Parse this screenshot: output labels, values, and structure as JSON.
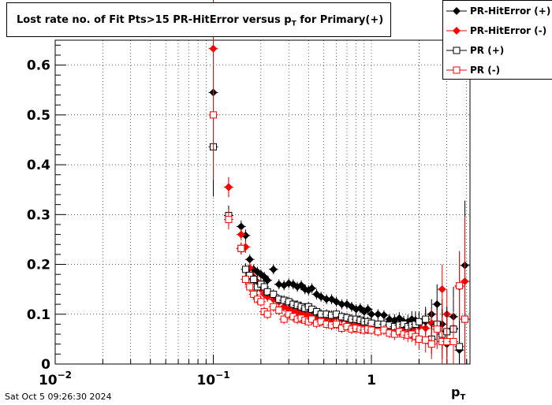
{
  "title": {
    "main": "Lost rate no. of Fit Pts>15 PR-HitError versus p",
    "sub": "T",
    "tail": " for Primary(+)"
  },
  "legend": [
    {
      "label": "PR-HitError (+)",
      "color": "#000000",
      "marker": "filled-diamond"
    },
    {
      "label": "PR-HitError (-)",
      "color": "#ff0000",
      "marker": "filled-diamond"
    },
    {
      "label": "PR (+)",
      "color": "#000000",
      "marker": "open-square"
    },
    {
      "label": "PR (-)",
      "color": "#ff0000",
      "marker": "open-square"
    }
  ],
  "datestamp": "Sat Oct  5 09:26:30 2024",
  "xaxis_title": {
    "main": "p",
    "sub": "T"
  },
  "chart_data": {
    "type": "scatter",
    "xscale": "log",
    "xlim": [
      0.01,
      4.2
    ],
    "ylim": [
      0,
      0.65
    ],
    "grid": true,
    "legend_position": "top-right",
    "ytick_labels": [
      "0",
      "0.1",
      "0.2",
      "0.3",
      "0.4",
      "0.5",
      "0.6"
    ],
    "yticks": [
      0,
      0.1,
      0.2,
      0.3,
      0.4,
      0.5,
      0.6
    ],
    "xtick_labels": [
      {
        "value": 0.01,
        "base": "10",
        "exp": "−2"
      },
      {
        "value": 0.1,
        "base": "10",
        "exp": "−1"
      },
      {
        "value": 1,
        "base": "1",
        "exp": ""
      }
    ],
    "series": [
      {
        "name": "PR-HitError (+)",
        "color": "#000000",
        "marker": "filled-diamond",
        "x": [
          0.1,
          0.125,
          0.15,
          0.16,
          0.17,
          0.18,
          0.19,
          0.2,
          0.21,
          0.22,
          0.24,
          0.26,
          0.28,
          0.3,
          0.32,
          0.34,
          0.36,
          0.38,
          0.4,
          0.42,
          0.45,
          0.48,
          0.52,
          0.56,
          0.6,
          0.65,
          0.7,
          0.75,
          0.8,
          0.85,
          0.9,
          0.95,
          1.0,
          1.1,
          1.2,
          1.3,
          1.4,
          1.5,
          1.6,
          1.7,
          1.8,
          1.9,
          2.0,
          2.2,
          2.4,
          2.6,
          2.8,
          3.0,
          3.3,
          3.6,
          3.9
        ],
        "y": [
          0.545,
          0.355,
          0.276,
          0.258,
          0.21,
          0.19,
          0.185,
          0.18,
          0.175,
          0.168,
          0.19,
          0.16,
          0.158,
          0.162,
          0.16,
          0.155,
          0.158,
          0.15,
          0.148,
          0.152,
          0.14,
          0.135,
          0.13,
          0.13,
          0.125,
          0.12,
          0.12,
          0.115,
          0.11,
          0.112,
          0.105,
          0.11,
          0.1,
          0.1,
          0.098,
          0.09,
          0.088,
          0.092,
          0.085,
          0.085,
          0.09,
          0.088,
          0.082,
          0.085,
          0.1,
          0.12,
          0.08,
          0.04,
          0.095,
          0.028,
          0.198
        ],
        "yerr": [
          0.19,
          0.02,
          0.012,
          0.012,
          0.01,
          0.01,
          0.01,
          0.01,
          0.01,
          0.01,
          0.01,
          0.01,
          0.01,
          0.01,
          0.01,
          0.01,
          0.01,
          0.01,
          0.01,
          0.01,
          0.01,
          0.01,
          0.01,
          0.01,
          0.01,
          0.01,
          0.01,
          0.01,
          0.01,
          0.01,
          0.01,
          0.01,
          0.01,
          0.01,
          0.01,
          0.01,
          0.012,
          0.012,
          0.012,
          0.014,
          0.016,
          0.018,
          0.02,
          0.025,
          0.03,
          0.04,
          0.05,
          0.05,
          0.06,
          0.07,
          0.13
        ]
      },
      {
        "name": "PR-HitError (-)",
        "color": "#ff0000",
        "marker": "filled-diamond",
        "x": [
          0.1,
          0.125,
          0.15,
          0.16,
          0.17,
          0.18,
          0.19,
          0.2,
          0.21,
          0.22,
          0.24,
          0.26,
          0.28,
          0.3,
          0.32,
          0.34,
          0.36,
          0.38,
          0.4,
          0.42,
          0.45,
          0.48,
          0.52,
          0.56,
          0.6,
          0.65,
          0.7,
          0.75,
          0.8,
          0.85,
          0.9,
          0.95,
          1.0,
          1.1,
          1.2,
          1.3,
          1.4,
          1.5,
          1.6,
          1.7,
          1.8,
          1.9,
          2.0,
          2.2,
          2.4,
          2.6,
          2.8,
          3.0,
          3.3,
          3.6,
          3.9
        ],
        "y": [
          0.633,
          0.355,
          0.26,
          0.235,
          0.193,
          0.175,
          0.165,
          0.15,
          0.14,
          0.135,
          0.13,
          0.125,
          0.115,
          0.11,
          0.108,
          0.105,
          0.103,
          0.1,
          0.1,
          0.098,
          0.095,
          0.1,
          0.092,
          0.09,
          0.095,
          0.09,
          0.088,
          0.085,
          0.082,
          0.08,
          0.078,
          0.08,
          0.078,
          0.076,
          0.075,
          0.072,
          0.075,
          0.07,
          0.072,
          0.075,
          0.07,
          0.08,
          0.075,
          0.072,
          0.082,
          0.075,
          0.15,
          0.1,
          0.072,
          0.155,
          0.166
        ],
        "yerr": [
          0.19,
          0.02,
          0.012,
          0.012,
          0.01,
          0.01,
          0.01,
          0.01,
          0.01,
          0.01,
          0.01,
          0.01,
          0.01,
          0.01,
          0.01,
          0.01,
          0.01,
          0.01,
          0.01,
          0.01,
          0.01,
          0.01,
          0.01,
          0.01,
          0.01,
          0.01,
          0.01,
          0.01,
          0.01,
          0.01,
          0.01,
          0.01,
          0.01,
          0.01,
          0.01,
          0.01,
          0.012,
          0.012,
          0.012,
          0.014,
          0.016,
          0.018,
          0.02,
          0.025,
          0.03,
          0.04,
          0.05,
          0.05,
          0.06,
          0.07,
          0.13
        ]
      },
      {
        "name": "PR (+)",
        "color": "#000000",
        "marker": "open-square",
        "x": [
          0.1,
          0.125,
          0.15,
          0.16,
          0.17,
          0.18,
          0.19,
          0.2,
          0.21,
          0.22,
          0.24,
          0.26,
          0.28,
          0.3,
          0.32,
          0.34,
          0.36,
          0.38,
          0.4,
          0.42,
          0.45,
          0.48,
          0.52,
          0.56,
          0.6,
          0.65,
          0.7,
          0.75,
          0.8,
          0.85,
          0.9,
          0.95,
          1.0,
          1.1,
          1.2,
          1.3,
          1.4,
          1.5,
          1.6,
          1.7,
          1.8,
          1.9,
          2.0,
          2.2,
          2.4,
          2.6,
          2.8,
          3.0,
          3.3,
          3.6,
          3.9
        ],
        "y": [
          0.436,
          0.298,
          0.232,
          0.19,
          0.178,
          0.17,
          0.155,
          0.16,
          0.155,
          0.145,
          0.14,
          0.13,
          0.128,
          0.125,
          0.12,
          0.118,
          0.115,
          0.112,
          0.115,
          0.11,
          0.105,
          0.1,
          0.1,
          0.098,
          0.1,
          0.095,
          0.093,
          0.09,
          0.09,
          0.088,
          0.085,
          0.085,
          0.082,
          0.08,
          0.08,
          0.078,
          0.075,
          0.078,
          0.08,
          0.075,
          0.078,
          0.08,
          0.085,
          0.09,
          0.05,
          0.08,
          0.06,
          0.065,
          0.07,
          0.035,
          0.09
        ],
        "yerr": [
          0.1,
          0.02,
          0.012,
          0.012,
          0.01,
          0.01,
          0.01,
          0.01,
          0.01,
          0.01,
          0.01,
          0.01,
          0.01,
          0.01,
          0.01,
          0.01,
          0.01,
          0.01,
          0.01,
          0.01,
          0.01,
          0.01,
          0.01,
          0.01,
          0.01,
          0.01,
          0.01,
          0.01,
          0.01,
          0.01,
          0.01,
          0.01,
          0.01,
          0.01,
          0.01,
          0.01,
          0.012,
          0.012,
          0.012,
          0.014,
          0.016,
          0.018,
          0.02,
          0.025,
          0.03,
          0.04,
          0.05,
          0.05,
          0.06,
          0.07,
          0.1
        ]
      },
      {
        "name": "PR (-)",
        "color": "#ff0000",
        "marker": "open-square",
        "x": [
          0.1,
          0.125,
          0.15,
          0.16,
          0.17,
          0.18,
          0.19,
          0.2,
          0.21,
          0.22,
          0.24,
          0.26,
          0.28,
          0.3,
          0.32,
          0.34,
          0.36,
          0.38,
          0.4,
          0.42,
          0.45,
          0.48,
          0.52,
          0.56,
          0.6,
          0.65,
          0.7,
          0.75,
          0.8,
          0.85,
          0.9,
          0.95,
          1.0,
          1.1,
          1.2,
          1.3,
          1.4,
          1.5,
          1.6,
          1.7,
          1.8,
          1.9,
          2.0,
          2.2,
          2.4,
          2.6,
          2.8,
          3.0,
          3.3,
          3.6,
          3.9
        ],
        "y": [
          0.5,
          0.29,
          0.232,
          0.17,
          0.155,
          0.14,
          0.13,
          0.125,
          0.105,
          0.1,
          0.115,
          0.108,
          0.09,
          0.1,
          0.095,
          0.09,
          0.092,
          0.088,
          0.085,
          0.09,
          0.082,
          0.085,
          0.08,
          0.078,
          0.08,
          0.072,
          0.075,
          0.07,
          0.072,
          0.07,
          0.068,
          0.07,
          0.068,
          0.065,
          0.068,
          0.062,
          0.06,
          0.065,
          0.06,
          0.058,
          0.06,
          0.055,
          0.05,
          0.048,
          0.04,
          0.07,
          0.045,
          0.045,
          0.045,
          0.157,
          0.09
        ],
        "yerr": [
          0.13,
          0.02,
          0.012,
          0.012,
          0.01,
          0.01,
          0.01,
          0.01,
          0.01,
          0.01,
          0.01,
          0.01,
          0.01,
          0.01,
          0.01,
          0.01,
          0.01,
          0.01,
          0.01,
          0.01,
          0.01,
          0.01,
          0.01,
          0.01,
          0.01,
          0.01,
          0.01,
          0.01,
          0.01,
          0.01,
          0.01,
          0.01,
          0.01,
          0.01,
          0.01,
          0.01,
          0.012,
          0.012,
          0.012,
          0.014,
          0.016,
          0.018,
          0.02,
          0.025,
          0.03,
          0.04,
          0.05,
          0.05,
          0.06,
          0.07,
          0.1
        ]
      }
    ]
  }
}
